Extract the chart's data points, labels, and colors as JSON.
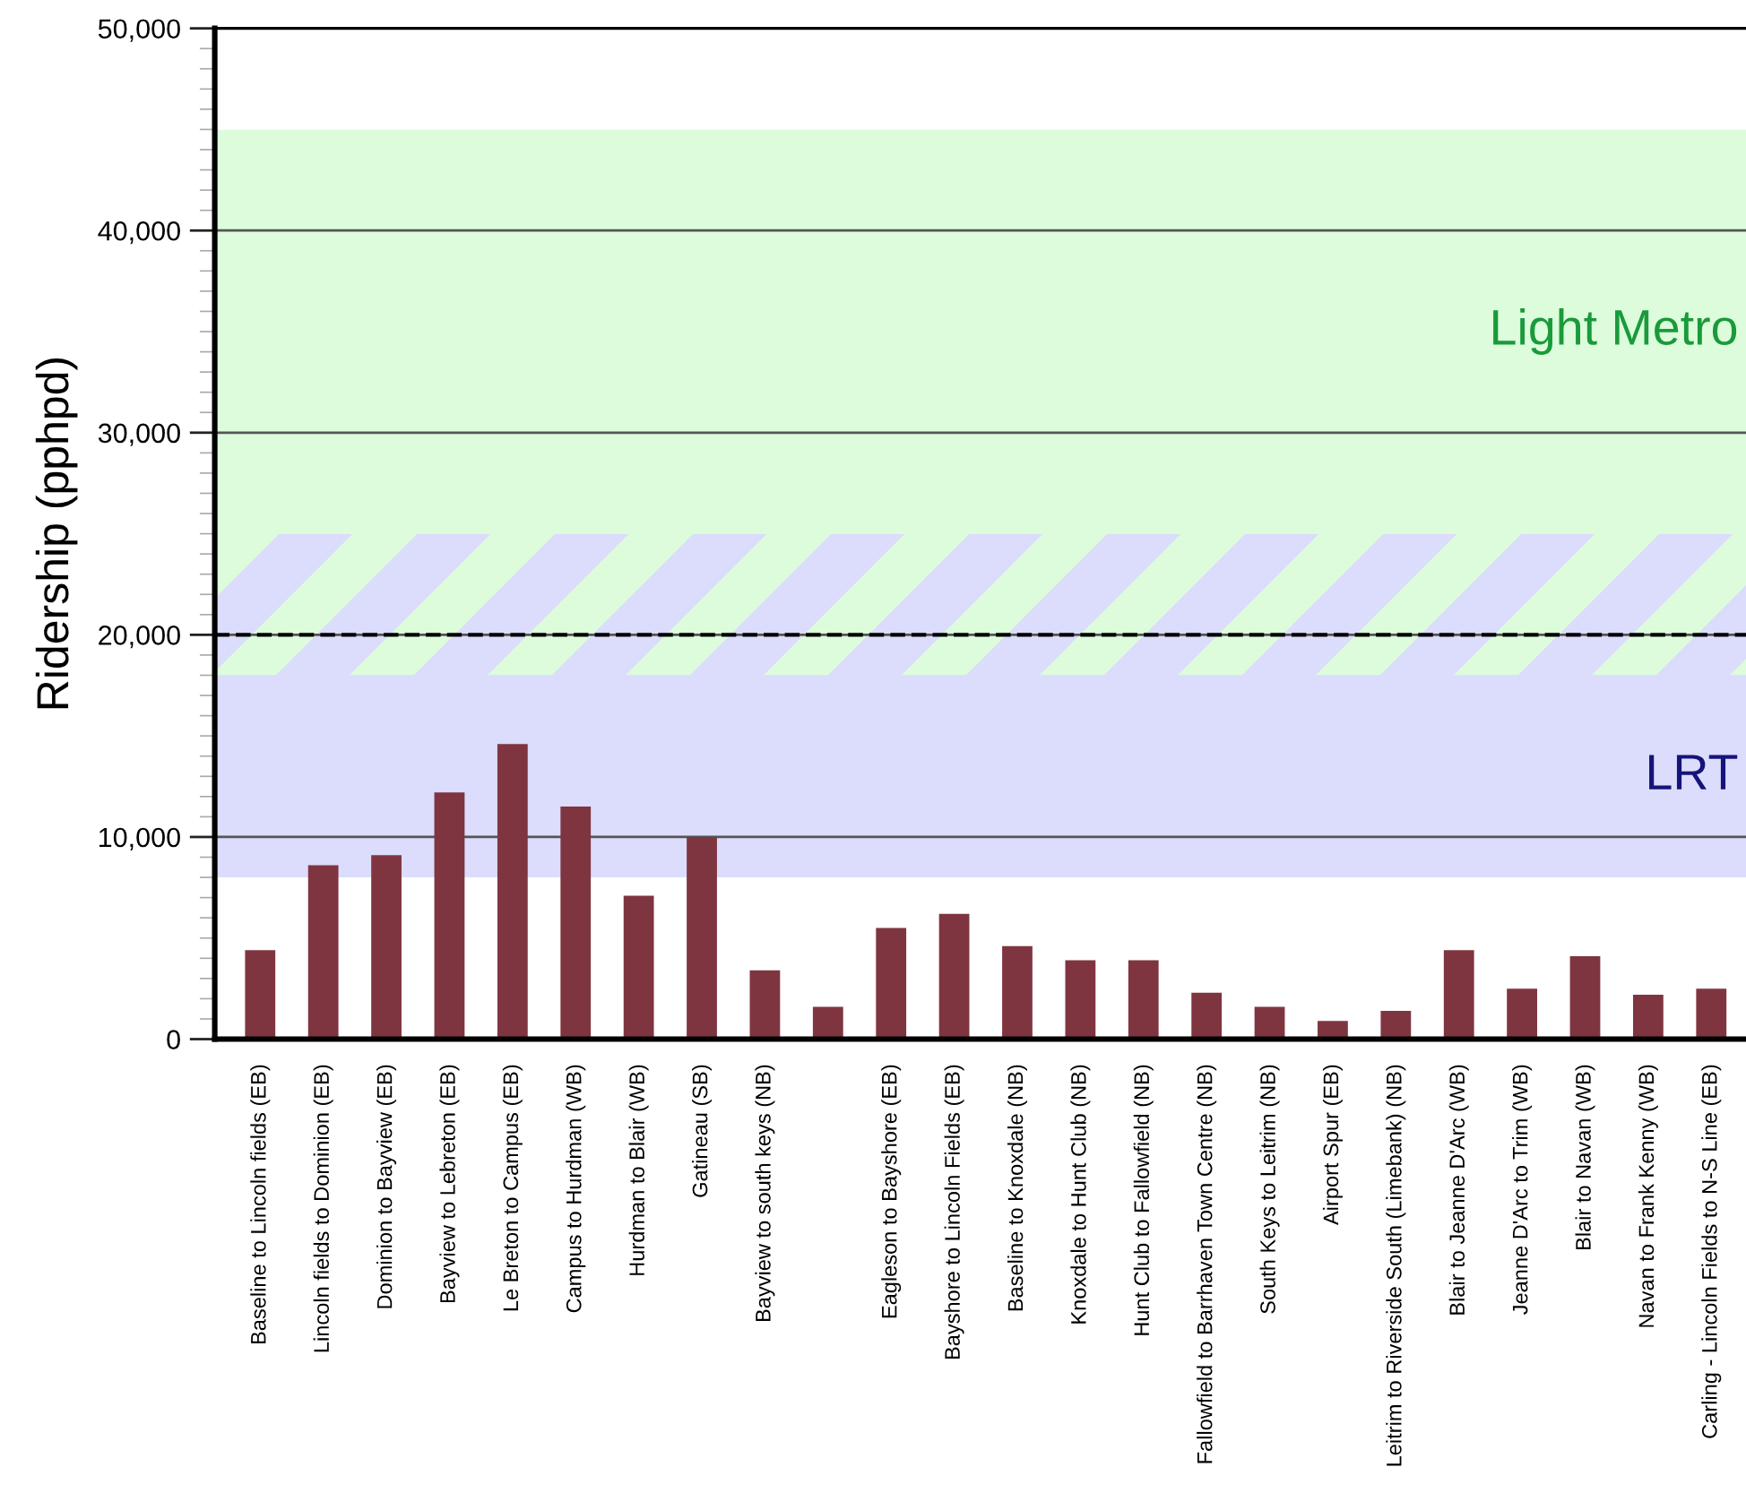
{
  "chart_data": {
    "type": "bar",
    "ylabel": "Ridership (pphpd)",
    "categories": [
      "Baseline to Lincoln fields (EB)",
      "Lincoln fields to Dominion (EB)",
      "Dominion to Bayview (EB)",
      "Bayview to Lebreton (EB)",
      "Le Breton to Campus (EB)",
      "Campus to Hurdman (WB)",
      "Hurdman to Blair (WB)",
      "Gatineau (SB)",
      "Bayview to south keys (NB)",
      null,
      "Eagleson to Bayshore (EB)",
      "Bayshore to Lincoln Fields (EB)",
      "Baseline to Knoxdale (NB)",
      "Knoxdale to Hunt Club (NB)",
      "Hunt Club to Fallowfield (NB)",
      "Fallowfield to Barrhaven Town Centre (NB)",
      "South Keys to Leitrim (NB)",
      "Airport Spur (EB)",
      "Leitrim to Riverside South (Limebank) (NB)",
      "Blair to Jeanne D'Arc (WB)",
      "Jeanne D'Arc to Trim (WB)",
      "Blair to Navan (WB)",
      "Navan to Frank Kenny (WB)",
      "Carling - Lincoln Fields to N-S Line (EB)"
    ],
    "values": [
      4400,
      8600,
      9100,
      12200,
      14600,
      11500,
      7100,
      10000,
      3400,
      1600,
      5500,
      6200,
      4600,
      3900,
      3900,
      2300,
      1600,
      900,
      1400,
      4400,
      2500,
      4100,
      2200,
      2500
    ],
    "color": "#7f3540",
    "ylim": [
      0,
      50000
    ],
    "yticks": [
      0,
      {
        "value": 10000,
        "label": "10,000"
      },
      {
        "value": 20000,
        "label": "20,000"
      },
      {
        "value": 30000,
        "label": "30,000"
      },
      {
        "value": 40000,
        "label": "40,000"
      },
      {
        "value": 50000,
        "label": "50,000"
      }
    ],
    "grid": "y",
    "bands": [
      {
        "axis": "y",
        "from": 18000,
        "to": 45000,
        "label": "Light Metro",
        "color": "#dcfcdc"
      },
      {
        "axis": "y",
        "from": 8000,
        "to": 25000,
        "label": "LRT",
        "color": "#dcdcfc"
      }
    ],
    "ref_lines": [
      {
        "axis": "y",
        "value": 20000,
        "label": null,
        "color": "#000000",
        "line_style": "dashed"
      }
    ]
  }
}
